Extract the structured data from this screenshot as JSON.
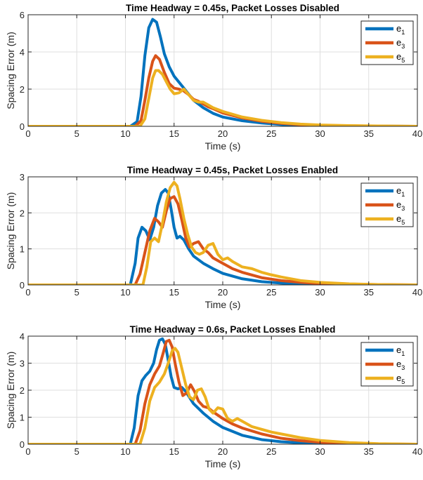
{
  "chart_data": [
    {
      "type": "line",
      "title": "Time Headway = 0.45s, Packet Losses Disabled",
      "xlabel": "Time (s)",
      "ylabel": "Spacing Error (m)",
      "xlim": [
        0,
        40
      ],
      "ylim": [
        0,
        6
      ],
      "xticks": [
        0,
        5,
        10,
        15,
        20,
        25,
        30,
        35,
        40
      ],
      "yticks": [
        0,
        2,
        4,
        6
      ],
      "grid": true,
      "legend_position": "top-right",
      "series": [
        {
          "name": "e",
          "subscript": "1",
          "color": "#0072BD",
          "x": [
            0,
            10.5,
            11.2,
            11.6,
            12.0,
            12.4,
            12.8,
            13.2,
            13.6,
            14.0,
            14.5,
            15.0,
            16.0,
            17.0,
            18.0,
            19.0,
            20.0,
            22.0,
            24.0,
            26.0,
            28.0,
            30.0,
            33.0,
            36.0,
            40.0
          ],
          "y": [
            0,
            0,
            0.25,
            1.6,
            3.8,
            5.3,
            5.75,
            5.6,
            4.8,
            3.9,
            3.2,
            2.7,
            2.05,
            1.4,
            1.0,
            0.7,
            0.5,
            0.3,
            0.18,
            0.1,
            0.05,
            0.03,
            0.02,
            0.01,
            0.0
          ]
        },
        {
          "name": "e",
          "subscript": "3",
          "color": "#D95319",
          "x": [
            0,
            11.0,
            11.6,
            12.0,
            12.4,
            12.8,
            13.1,
            13.5,
            14.0,
            14.5,
            15.0,
            15.5,
            16.0,
            16.5,
            17.0,
            17.5,
            18.0,
            18.5,
            19.0,
            20.0,
            22.0,
            24.0,
            26.0,
            28.0,
            30.0,
            33.0,
            36.0,
            40.0
          ],
          "y": [
            0,
            0,
            0.3,
            1.4,
            2.6,
            3.5,
            3.8,
            3.6,
            2.9,
            2.3,
            2.05,
            2.0,
            1.9,
            1.7,
            1.45,
            1.35,
            1.2,
            1.05,
            0.95,
            0.72,
            0.45,
            0.27,
            0.16,
            0.09,
            0.05,
            0.03,
            0.01,
            0.0
          ]
        },
        {
          "name": "e",
          "subscript": "5",
          "color": "#EDB120",
          "x": [
            0,
            11.5,
            12.0,
            12.4,
            12.8,
            13.1,
            13.4,
            13.8,
            14.2,
            14.6,
            15.0,
            15.5,
            16.0,
            16.5,
            17.0,
            17.5,
            18.0,
            18.5,
            19.0,
            20.0,
            22.0,
            24.0,
            26.0,
            28.0,
            30.0,
            33.0,
            36.0,
            40.0
          ],
          "y": [
            0,
            0,
            0.4,
            1.5,
            2.6,
            3.0,
            3.0,
            2.8,
            2.4,
            2.0,
            1.75,
            1.8,
            2.0,
            1.7,
            1.4,
            1.3,
            1.3,
            1.15,
            1.0,
            0.8,
            0.5,
            0.32,
            0.2,
            0.12,
            0.07,
            0.04,
            0.02,
            0.0
          ]
        }
      ]
    },
    {
      "type": "line",
      "title": "Time Headway = 0.45s, Packet Losses Enabled",
      "xlabel": "Time (s)",
      "ylabel": "Spacing Error (m)",
      "xlim": [
        0,
        40
      ],
      "ylim": [
        0,
        3
      ],
      "xticks": [
        0,
        5,
        10,
        15,
        20,
        25,
        30,
        35,
        40
      ],
      "yticks": [
        0,
        1,
        2,
        3
      ],
      "grid": true,
      "legend_position": "top-right",
      "series": [
        {
          "name": "e",
          "subscript": "1",
          "color": "#0072BD",
          "x": [
            0,
            10.5,
            11.0,
            11.3,
            11.7,
            12.1,
            12.5,
            12.9,
            13.3,
            13.7,
            14.1,
            14.4,
            14.7,
            15.0,
            15.3,
            15.6,
            16.0,
            16.5,
            17.0,
            18.0,
            19.0,
            20.0,
            22.0,
            24.0,
            26.0,
            28.0,
            30.0,
            33.0,
            36.0,
            40.0
          ],
          "y": [
            0,
            0,
            0.6,
            1.3,
            1.6,
            1.5,
            1.25,
            1.6,
            2.2,
            2.55,
            2.65,
            2.55,
            2.1,
            1.6,
            1.3,
            1.35,
            1.25,
            1.0,
            0.8,
            0.6,
            0.45,
            0.32,
            0.17,
            0.09,
            0.05,
            0.03,
            0.02,
            0.01,
            0.0,
            0.0
          ]
        },
        {
          "name": "e",
          "subscript": "3",
          "color": "#D95319",
          "x": [
            0,
            11.0,
            11.5,
            12.0,
            12.5,
            13.0,
            13.4,
            13.8,
            14.2,
            14.6,
            15.0,
            15.4,
            15.8,
            16.2,
            16.6,
            17.0,
            17.5,
            18.0,
            18.5,
            19.0,
            20.0,
            21.0,
            22.0,
            24.0,
            26.0,
            28.0,
            30.0,
            33.0,
            36.0,
            40.0
          ],
          "y": [
            0,
            0,
            0.3,
            0.9,
            1.5,
            1.85,
            1.75,
            1.6,
            2.05,
            2.4,
            2.45,
            2.25,
            1.8,
            1.3,
            1.05,
            1.15,
            1.2,
            1.0,
            0.9,
            0.75,
            0.6,
            0.45,
            0.35,
            0.2,
            0.12,
            0.07,
            0.04,
            0.02,
            0.01,
            0.0
          ]
        },
        {
          "name": "e",
          "subscript": "5",
          "color": "#EDB120",
          "x": [
            0,
            11.8,
            12.2,
            12.6,
            13.0,
            13.4,
            13.8,
            14.2,
            14.6,
            15.0,
            15.3,
            15.6,
            16.0,
            16.4,
            16.8,
            17.2,
            17.6,
            18.0,
            18.5,
            19.0,
            19.5,
            20.0,
            20.5,
            21.0,
            22.0,
            23.0,
            24.0,
            25.0,
            26.0,
            28.0,
            30.0,
            33.0,
            36.0,
            40.0
          ],
          "y": [
            0,
            0,
            0.5,
            1.2,
            1.3,
            1.2,
            1.7,
            2.3,
            2.7,
            2.85,
            2.75,
            2.4,
            1.85,
            1.4,
            1.05,
            0.9,
            0.85,
            0.9,
            1.1,
            1.15,
            0.85,
            0.7,
            0.75,
            0.65,
            0.5,
            0.45,
            0.35,
            0.28,
            0.22,
            0.12,
            0.07,
            0.03,
            0.01,
            0.0
          ]
        }
      ]
    },
    {
      "type": "line",
      "title": "Time Headway = 0.6s, Packet Losses Enabled",
      "xlabel": "Time (s)",
      "ylabel": "Spacing Error (m)",
      "xlim": [
        0,
        40
      ],
      "ylim": [
        0,
        4
      ],
      "xticks": [
        0,
        5,
        10,
        15,
        20,
        25,
        30,
        35,
        40
      ],
      "yticks": [
        0,
        1,
        2,
        3,
        4
      ],
      "grid": true,
      "legend_position": "top-right",
      "series": [
        {
          "name": "e",
          "subscript": "1",
          "color": "#0072BD",
          "x": [
            0,
            10.5,
            10.9,
            11.3,
            11.7,
            12.1,
            12.5,
            12.9,
            13.2,
            13.5,
            13.8,
            14.1,
            14.4,
            14.7,
            15.0,
            15.4,
            15.8,
            16.2,
            17.0,
            18.0,
            19.0,
            20.0,
            22.0,
            24.0,
            26.0,
            28.0,
            30.0,
            33.0,
            36.0,
            40.0
          ],
          "y": [
            0,
            0,
            0.6,
            1.8,
            2.35,
            2.55,
            2.7,
            3.0,
            3.5,
            3.85,
            3.9,
            3.7,
            3.1,
            2.5,
            2.1,
            2.05,
            2.1,
            1.95,
            1.5,
            1.15,
            0.85,
            0.62,
            0.33,
            0.17,
            0.09,
            0.05,
            0.03,
            0.01,
            0.0,
            0.0
          ]
        },
        {
          "name": "e",
          "subscript": "3",
          "color": "#D95319",
          "x": [
            0,
            11.0,
            11.5,
            12.0,
            12.5,
            13.0,
            13.5,
            13.9,
            14.2,
            14.5,
            14.8,
            15.1,
            15.5,
            15.9,
            16.3,
            16.7,
            17.1,
            17.5,
            18.0,
            18.5,
            19.0,
            20.0,
            21.0,
            22.0,
            24.0,
            26.0,
            28.0,
            30.0,
            33.0,
            36.0,
            40.0
          ],
          "y": [
            0,
            0,
            0.5,
            1.5,
            2.2,
            2.6,
            2.9,
            3.4,
            3.8,
            3.85,
            3.6,
            3.0,
            2.3,
            1.8,
            1.9,
            2.2,
            1.95,
            1.6,
            1.4,
            1.35,
            1.2,
            0.95,
            0.75,
            0.6,
            0.38,
            0.22,
            0.13,
            0.07,
            0.03,
            0.01,
            0.0
          ]
        },
        {
          "name": "e",
          "subscript": "5",
          "color": "#EDB120",
          "x": [
            0,
            11.5,
            12.0,
            12.5,
            13.0,
            13.5,
            14.0,
            14.4,
            14.8,
            15.1,
            15.4,
            15.8,
            16.2,
            16.6,
            17.0,
            17.4,
            17.8,
            18.2,
            18.6,
            19.0,
            19.5,
            20.0,
            20.5,
            21.0,
            21.5,
            22.0,
            23.0,
            24.0,
            25.0,
            26.0,
            28.0,
            30.0,
            33.0,
            36.0,
            40.0
          ],
          "y": [
            0,
            0,
            0.6,
            1.6,
            2.1,
            2.3,
            2.6,
            3.0,
            3.45,
            3.55,
            3.4,
            2.8,
            2.2,
            1.75,
            1.65,
            2.0,
            2.05,
            1.75,
            1.3,
            1.15,
            1.35,
            1.3,
            0.95,
            0.85,
            0.95,
            0.85,
            0.65,
            0.55,
            0.45,
            0.38,
            0.24,
            0.14,
            0.06,
            0.02,
            0.0
          ]
        }
      ]
    }
  ]
}
